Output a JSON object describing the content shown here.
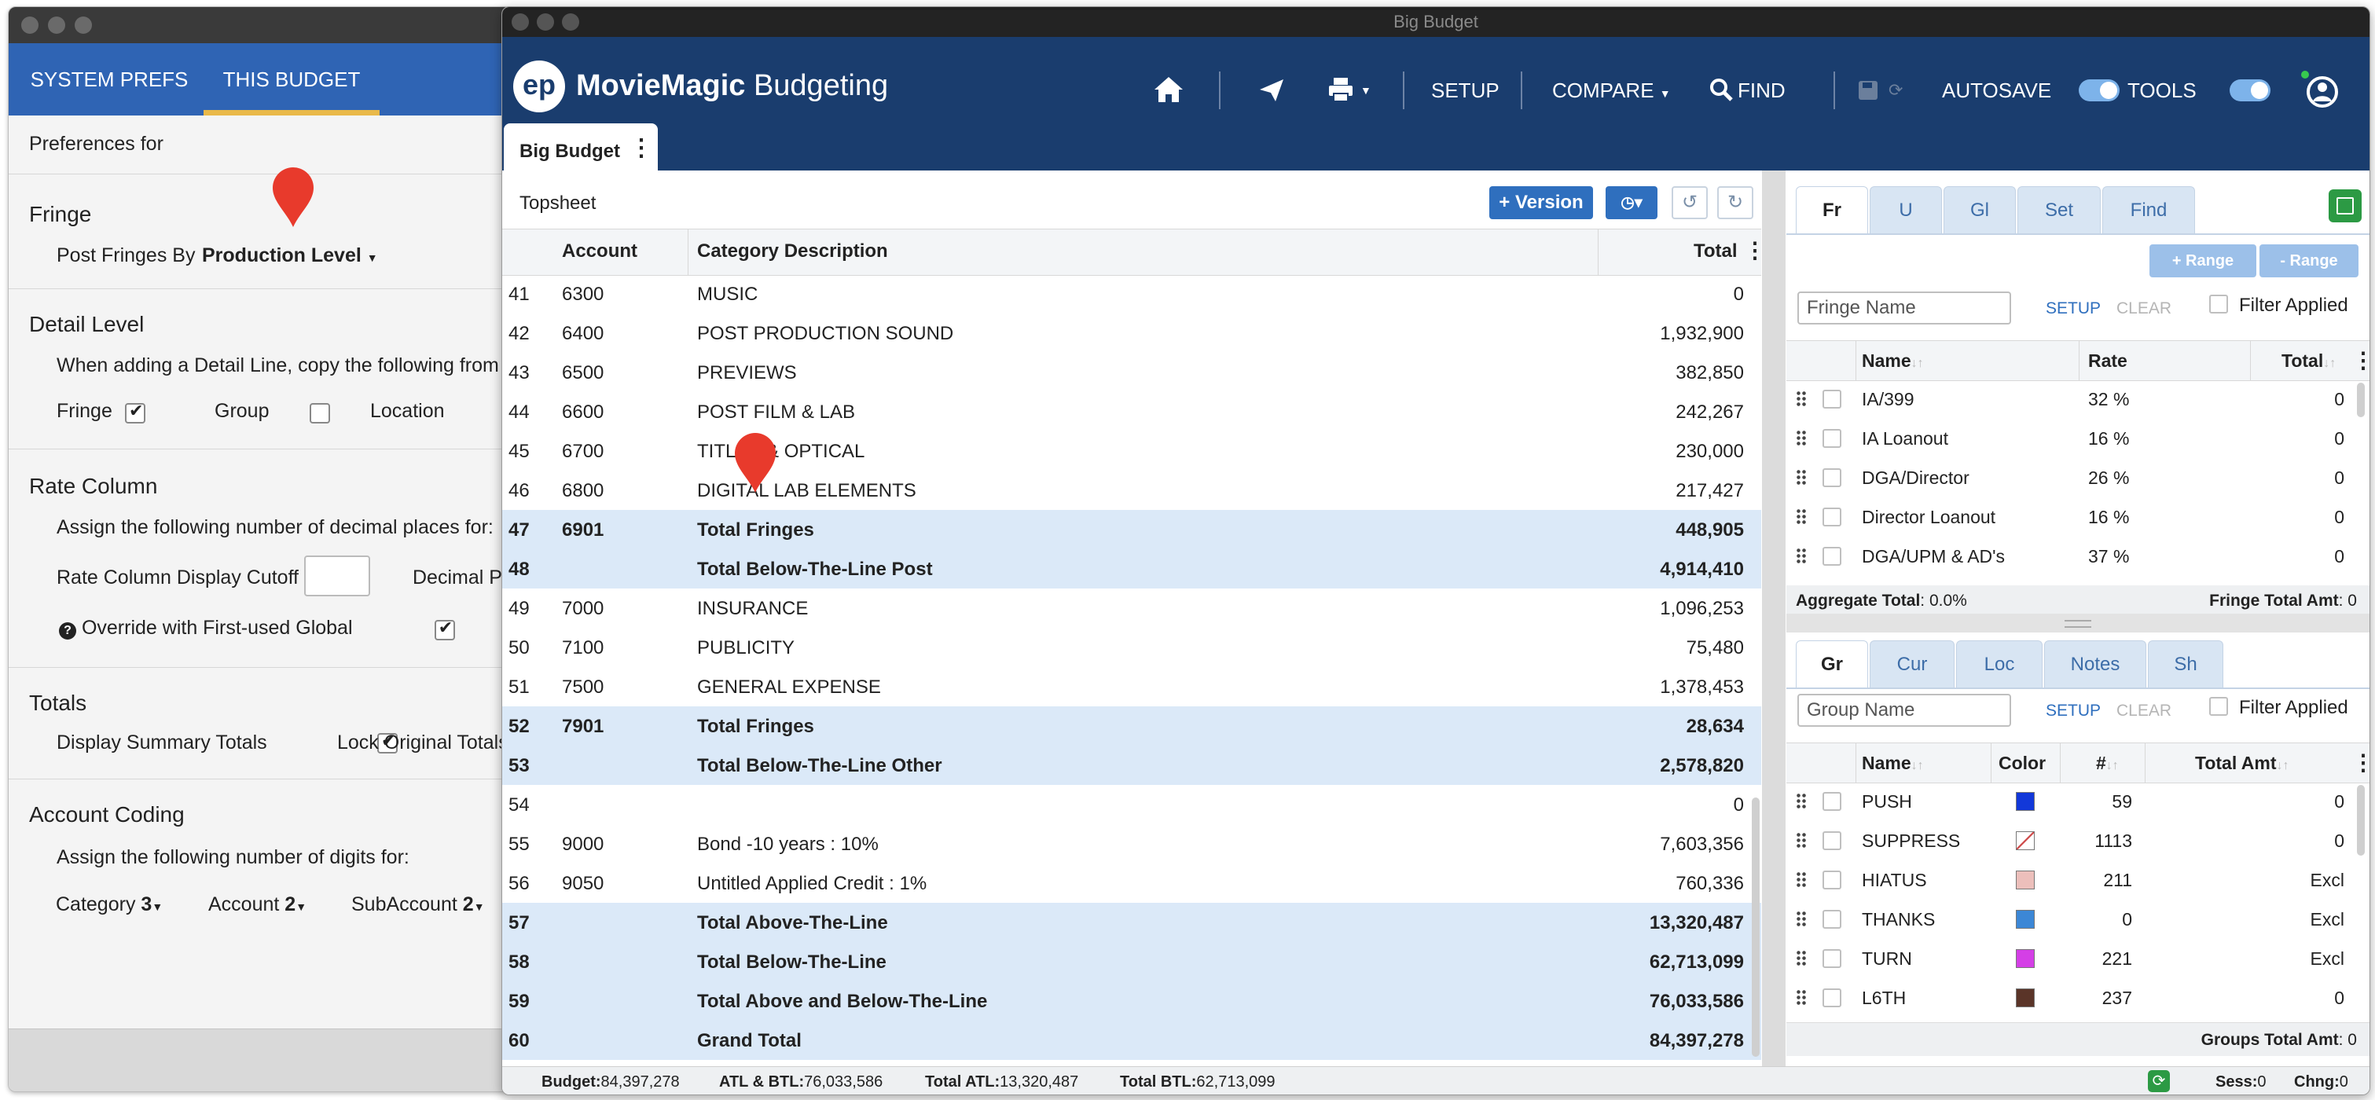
{
  "prefs": {
    "tabs": [
      "SYSTEM PREFS",
      "THIS BUDGET"
    ],
    "preferences_for": "Preferences for",
    "fringe": {
      "heading": "Fringe",
      "post_label": "Post Fringes By",
      "post_value": "Production Level"
    },
    "detail": {
      "heading": "Detail Level",
      "text": "When adding a Detail Line, copy the following from th",
      "fringe": "Fringe",
      "group": "Group",
      "location": "Location"
    },
    "rate": {
      "heading": "Rate Column",
      "text": "Assign the following number of decimal places for:",
      "cutoff": "Rate Column Display Cutoff",
      "decimal": "Decimal Pl",
      "override": "Override with First-used Global"
    },
    "totals": {
      "heading": "Totals",
      "summary": "Display Summary Totals",
      "lock": "Lock Original Totals"
    },
    "coding": {
      "heading": "Account Coding",
      "text": "Assign the following number of digits for:",
      "category_label": "Category",
      "category_val": "3",
      "account_label": "Account",
      "account_val": "2",
      "subaccount_label": "SubAccount",
      "subaccount_val": "2"
    }
  },
  "window_title": "Big Budget",
  "app": {
    "brand_bold": "MovieMagic",
    "brand_light": " Budgeting",
    "logo": "ep"
  },
  "nav": {
    "setup": "SETUP",
    "compare": "COMPARE",
    "find": "FIND",
    "autosave": "AUTOSAVE",
    "tools": "TOOLS"
  },
  "doc_tab": "Big Budget",
  "topsheet": {
    "label": "Topsheet",
    "version_btn": "+ Version",
    "columns": [
      "Account",
      "Category Description",
      "Total"
    ],
    "rows": [
      {
        "n": "41",
        "acct": "6300",
        "desc": "MUSIC",
        "total": "0",
        "hl": false
      },
      {
        "n": "42",
        "acct": "6400",
        "desc": "POST PRODUCTION SOUND",
        "total": "1,932,900",
        "hl": false
      },
      {
        "n": "43",
        "acct": "6500",
        "desc": "PREVIEWS",
        "total": "382,850",
        "hl": false
      },
      {
        "n": "44",
        "acct": "6600",
        "desc": "POST FILM & LAB",
        "total": "242,267",
        "hl": false
      },
      {
        "n": "45",
        "acct": "6700",
        "desc": "TITLES & OPTICAL",
        "total": "230,000",
        "hl": false
      },
      {
        "n": "46",
        "acct": "6800",
        "desc": "DIGITAL LAB ELEMENTS",
        "total": "217,427",
        "hl": false
      },
      {
        "n": "47",
        "acct": "6901",
        "desc": "Total Fringes",
        "total": "448,905",
        "hl": true
      },
      {
        "n": "48",
        "acct": "",
        "desc": "Total Below-The-Line Post",
        "total": "4,914,410",
        "hl": true
      },
      {
        "n": "49",
        "acct": "7000",
        "desc": "INSURANCE",
        "total": "1,096,253",
        "hl": false
      },
      {
        "n": "50",
        "acct": "7100",
        "desc": "PUBLICITY",
        "total": "75,480",
        "hl": false
      },
      {
        "n": "51",
        "acct": "7500",
        "desc": "GENERAL EXPENSE",
        "total": "1,378,453",
        "hl": false
      },
      {
        "n": "52",
        "acct": "7901",
        "desc": "Total Fringes",
        "total": "28,634",
        "hl": true
      },
      {
        "n": "53",
        "acct": "",
        "desc": "Total Below-The-Line Other",
        "total": "2,578,820",
        "hl": true
      },
      {
        "n": "54",
        "acct": "",
        "desc": "",
        "total": "0",
        "hl": false
      },
      {
        "n": "55",
        "acct": "9000",
        "desc": "Bond -10 years : 10%",
        "total": "7,603,356",
        "hl": false
      },
      {
        "n": "56",
        "acct": "9050",
        "desc": "Untitled Applied Credit : 1%",
        "total": "760,336",
        "hl": false
      },
      {
        "n": "57",
        "acct": "",
        "desc": "Total Above-The-Line",
        "total": "13,320,487",
        "hl": true
      },
      {
        "n": "58",
        "acct": "",
        "desc": "Total Below-The-Line",
        "total": "62,713,099",
        "hl": true
      },
      {
        "n": "59",
        "acct": "",
        "desc": "Total Above and Below-The-Line",
        "total": "76,033,586",
        "hl": true
      },
      {
        "n": "60",
        "acct": "",
        "desc": "Grand Total",
        "total": "84,397,278",
        "hl": true
      }
    ]
  },
  "status": {
    "budget_label": "Budget:",
    "budget": "84,397,278",
    "atlbtl_label": "ATL & BTL:",
    "atlbtl": "76,033,586",
    "atl_label": "Total ATL:",
    "atl": "13,320,487",
    "btl_label": "Total BTL:",
    "btl": "62,713,099",
    "sess_label": "Sess:",
    "sess": "0",
    "chng_label": "Chng:",
    "chng": "0"
  },
  "fringes": {
    "tabs": [
      "Fr",
      "U",
      "Gl",
      "Set",
      "Find"
    ],
    "add_range": "+ Range",
    "remove_range": "- Range",
    "placeholder": "Fringe Name",
    "setup": "SETUP",
    "clear": "CLEAR",
    "filter": "Filter Applied",
    "columns": [
      "Name",
      "Rate",
      "Total"
    ],
    "rows": [
      {
        "name": "IA/399",
        "rate": "32 %",
        "total": "0"
      },
      {
        "name": "IA Loanout",
        "rate": "16 %",
        "total": "0"
      },
      {
        "name": "DGA/Director",
        "rate": "26 %",
        "total": "0"
      },
      {
        "name": "Director Loanout",
        "rate": "16 %",
        "total": "0"
      },
      {
        "name": "DGA/UPM & AD's",
        "rate": "37 %",
        "total": "0"
      }
    ],
    "aggregate_label": "Aggregate Total",
    "aggregate": ": 0.0%",
    "total_label": "Fringe Total Amt",
    "total": ": 0"
  },
  "groups": {
    "tabs": [
      "Gr",
      "Cur",
      "Loc",
      "Notes",
      "Sh"
    ],
    "placeholder": "Group Name",
    "setup": "SETUP",
    "clear": "CLEAR",
    "filter": "Filter Applied",
    "columns": [
      "Name",
      "Color",
      "#",
      "Total Amt"
    ],
    "rows": [
      {
        "name": "PUSH",
        "color": "#1238d9",
        "count": "59",
        "total": "0"
      },
      {
        "name": "SUPPRESS",
        "color": "none",
        "count": "1113",
        "total": "0"
      },
      {
        "name": "HIATUS",
        "color": "#ecbfbb",
        "count": "211",
        "total": "Excl"
      },
      {
        "name": "THANKS",
        "color": "#3c87d6",
        "count": "0",
        "total": "Excl"
      },
      {
        "name": "TURN",
        "color": "#d43fe6",
        "count": "221",
        "total": "Excl"
      },
      {
        "name": "L6TH",
        "color": "#5a3428",
        "count": "237",
        "total": "0"
      }
    ],
    "total_label": "Groups Total Amt",
    "total": ": 0"
  },
  "colors": {
    "navbar": "#1a3d6e",
    "accent": "#2f6fbe",
    "highlight_row": "#dbe9f8",
    "pin": "#e83a2c"
  }
}
